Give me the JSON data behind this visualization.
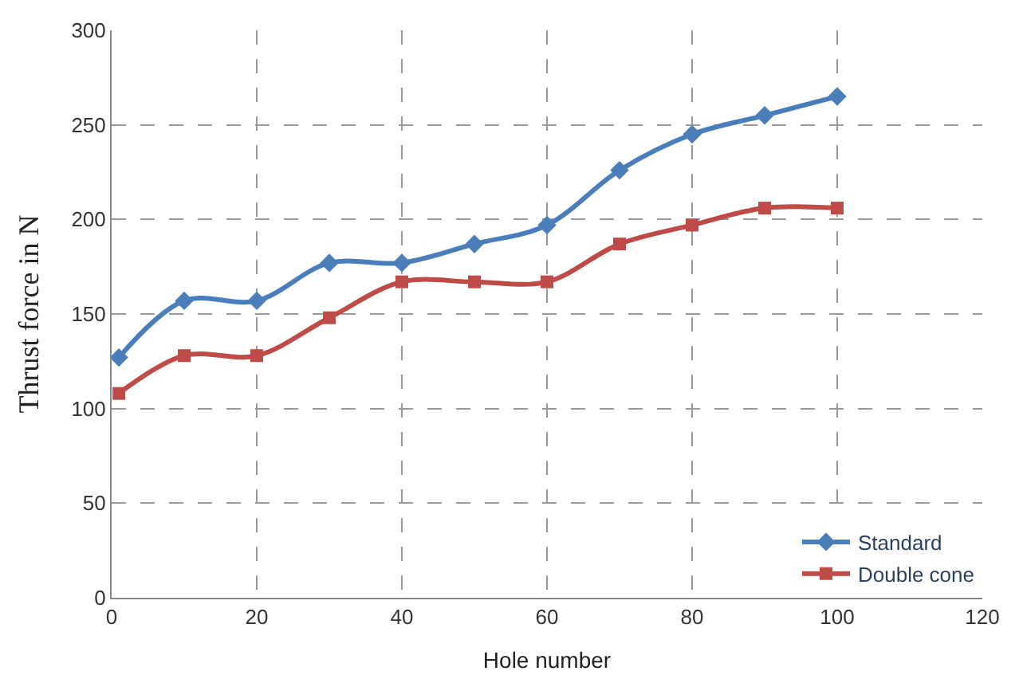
{
  "chart_data": {
    "type": "line",
    "xlabel": "Hole number",
    "ylabel": "Thrust force in N",
    "x": [
      1,
      10,
      20,
      30,
      40,
      50,
      60,
      70,
      80,
      90,
      100
    ],
    "series": [
      {
        "name": "Standard",
        "color": "#4a7ebb",
        "marker": "diamond",
        "values": [
          127,
          157,
          157,
          177,
          177,
          187,
          197,
          226,
          245,
          255,
          265
        ]
      },
      {
        "name": "Double cone",
        "color": "#be4b48",
        "marker": "square",
        "values": [
          108,
          128,
          128,
          148,
          167,
          167,
          167,
          187,
          197,
          206,
          206
        ]
      }
    ],
    "xlim": [
      0,
      120
    ],
    "xticks": [
      0,
      20,
      40,
      60,
      80,
      100,
      120
    ],
    "ylim": [
      0,
      300
    ],
    "yticks": [
      0,
      50,
      100,
      150,
      200,
      250,
      300
    ],
    "grid": true,
    "legend": "bottom right"
  }
}
